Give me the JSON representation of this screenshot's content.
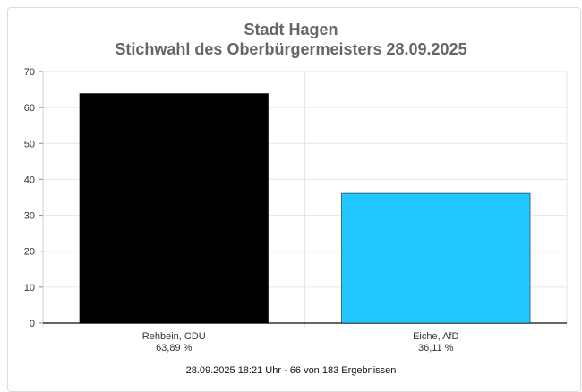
{
  "chart_data": {
    "type": "bar",
    "title": "Stadt Hagen",
    "subtitle": "Stichwahl des Oberbürgermeisters 28.09.2025",
    "categories": [
      "Rehbein, CDU",
      "Eiche, AfD"
    ],
    "value_labels": [
      "63,89 %",
      "36,11 %"
    ],
    "values": [
      63.89,
      36.11
    ],
    "colors": [
      "#000000",
      "#22c7ff"
    ],
    "ylim": [
      0,
      70
    ],
    "yticks": [
      0,
      10,
      20,
      30,
      40,
      50,
      60,
      70
    ],
    "grid": true,
    "xlabel": "",
    "ylabel": ""
  },
  "footnote": "28.09.2025 18:21 Uhr - 66 von 183 Ergebnissen"
}
